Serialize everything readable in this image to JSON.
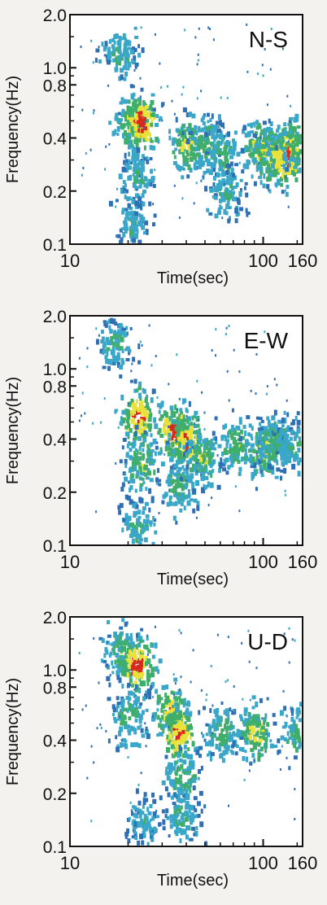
{
  "chart_data": [
    {
      "type": "heatmap",
      "label": "N-S",
      "xlabel": "Time(sec)",
      "ylabel": "Frequency(Hz)",
      "xscale": "log",
      "yscale": "log",
      "xlim": [
        10,
        160
      ],
      "ylim": [
        0.1,
        2.0
      ],
      "xticks": [
        "10",
        "100",
        "160"
      ],
      "yticks": [
        "2.0",
        "1.0",
        "0.8",
        "0.4",
        "0.2",
        "0.1"
      ],
      "colorscale": [
        "#2f6fb3",
        "#3aa7c9",
        "#3fae6a",
        "#e8e23a",
        "#d9281e"
      ],
      "blobs": [
        {
          "t": 18,
          "f": 1.2,
          "level": 0.45
        },
        {
          "t": 21,
          "f": 0.5,
          "level": 0.75
        },
        {
          "t": 23,
          "f": 0.5,
          "level": 0.95
        },
        {
          "t": 22,
          "f": 0.25,
          "level": 0.45
        },
        {
          "t": 21,
          "f": 0.13,
          "level": 0.4
        },
        {
          "t": 40,
          "f": 0.38,
          "level": 0.7
        },
        {
          "t": 50,
          "f": 0.38,
          "level": 0.55
        },
        {
          "t": 62,
          "f": 0.32,
          "level": 0.55
        },
        {
          "t": 62,
          "f": 0.2,
          "level": 0.45
        },
        {
          "t": 95,
          "f": 0.36,
          "level": 0.75
        },
        {
          "t": 110,
          "f": 0.32,
          "level": 0.8
        },
        {
          "t": 130,
          "f": 0.32,
          "level": 0.95
        },
        {
          "t": 145,
          "f": 0.38,
          "level": 0.65
        }
      ]
    },
    {
      "type": "heatmap",
      "label": "E-W",
      "xlabel": "Time(sec)",
      "ylabel": "Frequency(Hz)",
      "xscale": "log",
      "yscale": "log",
      "xlim": [
        10,
        160
      ],
      "ylim": [
        0.1,
        2.0
      ],
      "xticks": [
        "10",
        "100",
        "160"
      ],
      "yticks": [
        "2.0",
        "1.0",
        "0.8",
        "0.4",
        "0.2",
        "0.1"
      ],
      "colorscale": [
        "#2f6fb3",
        "#3aa7c9",
        "#3fae6a",
        "#e8e23a",
        "#d9281e"
      ],
      "blobs": [
        {
          "t": 17,
          "f": 1.4,
          "level": 0.45
        },
        {
          "t": 22,
          "f": 0.55,
          "level": 0.9
        },
        {
          "t": 23,
          "f": 0.3,
          "level": 0.6
        },
        {
          "t": 22,
          "f": 0.13,
          "level": 0.45
        },
        {
          "t": 34,
          "f": 0.45,
          "level": 0.95
        },
        {
          "t": 40,
          "f": 0.4,
          "level": 0.85
        },
        {
          "t": 36,
          "f": 0.22,
          "level": 0.55
        },
        {
          "t": 48,
          "f": 0.32,
          "level": 0.6
        },
        {
          "t": 72,
          "f": 0.38,
          "level": 0.6
        },
        {
          "t": 100,
          "f": 0.35,
          "level": 0.7
        },
        {
          "t": 115,
          "f": 0.4,
          "level": 0.55
        },
        {
          "t": 140,
          "f": 0.38,
          "level": 0.45
        }
      ]
    },
    {
      "type": "heatmap",
      "label": "U-D",
      "xlabel": "Time(sec)",
      "ylabel": "Frequency(Hz)",
      "xscale": "log",
      "yscale": "log",
      "xlim": [
        10,
        160
      ],
      "ylim": [
        0.1,
        2.0
      ],
      "xticks": [
        "10",
        "100",
        "160"
      ],
      "yticks": [
        "2.0",
        "1.0",
        "0.8",
        "0.4",
        "0.2",
        "0.1"
      ],
      "colorscale": [
        "#2f6fb3",
        "#3aa7c9",
        "#3fae6a",
        "#e8e23a",
        "#d9281e"
      ],
      "blobs": [
        {
          "t": 18,
          "f": 1.3,
          "level": 0.55
        },
        {
          "t": 22,
          "f": 1.1,
          "level": 0.95
        },
        {
          "t": 20,
          "f": 0.55,
          "level": 0.5
        },
        {
          "t": 33,
          "f": 0.6,
          "level": 0.8
        },
        {
          "t": 36,
          "f": 0.45,
          "level": 0.9
        },
        {
          "t": 37,
          "f": 0.25,
          "level": 0.55
        },
        {
          "t": 38,
          "f": 0.15,
          "level": 0.45
        },
        {
          "t": 60,
          "f": 0.45,
          "level": 0.55
        },
        {
          "t": 90,
          "f": 0.45,
          "level": 0.7
        },
        {
          "t": 150,
          "f": 0.45,
          "level": 0.55
        },
        {
          "t": 24,
          "f": 0.14,
          "level": 0.35
        }
      ]
    }
  ]
}
